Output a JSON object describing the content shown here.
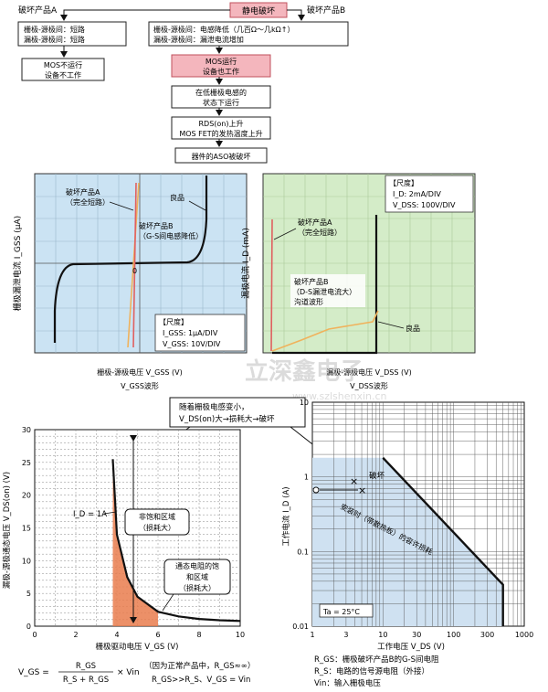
{
  "flow": {
    "top": "静电破坏",
    "productA_title": "破坏产品A",
    "productB_title": "破坏产品B",
    "a_box_lines": [
      "栅极-源极间：短路",
      "漏极-源极间：短路"
    ],
    "a_result_lines": [
      "MOS不运行",
      "设备不工作"
    ],
    "b_box_lines": [
      "栅极-源极间：电感降低（几百Ω～几kΩ↑）",
      "漏极-源极间：漏泄电流增加"
    ],
    "b_step1_lines": [
      "MOS运行",
      "设备也工作"
    ],
    "b_step2_lines": [
      "在低栅极电感的",
      "状态下运行"
    ],
    "b_step3_lines": [
      "RDS(on)上升",
      "MOS FET的发热温度上升"
    ],
    "b_step4": "器件的ASO被破坏"
  },
  "panel1": {
    "ylabel": "栅极漏泄电流  I_GSS (μA)",
    "xlabel": "栅极-源极电压  V_GSS  (V)",
    "caption": "V_GSS波形",
    "label_a": [
      "破坏产品A",
      "（完全短路）"
    ],
    "label_b": [
      "破坏产品B",
      "（G-S间电感降低）"
    ],
    "label_good": "良品",
    "origin": "0",
    "scale_title": "【尺度】",
    "scale_lines": [
      "I_GSS:  1μA/DIV",
      "V_GSS:  10V/DIV"
    ]
  },
  "panel2": {
    "ylabel": "漏极电流  I_D (mA)",
    "xlabel": "漏极-源极电压  V_DSS  (V)",
    "caption": "V_DSS波形",
    "scale_title": "【尺度】",
    "scale_lines": [
      "I_D:  2mA/DIV",
      "V_DSS:  100V/DIV"
    ],
    "label_a": [
      "破坏产品A",
      "（完全短路）"
    ],
    "label_b": [
      "破坏产品B",
      "（D-S漏泄电流大）",
      "沟道波形"
    ],
    "label_good": "良品"
  },
  "watermark": {
    "text": "立深鑫电子",
    "url": "www.szlshenxin.cn"
  },
  "callout": [
    "随着栅极电感变小，",
    "V_DS(on)大→损耗大→破坏"
  ],
  "panel3": {
    "ylabel": "漏极-源极通态电压  V_DS(on)  (V)",
    "xlabel": "栅极驱动电压  V_GS  (V)",
    "id_label": "I_D = 1A",
    "region1": [
      "非饱和区域",
      "（损耗大）"
    ],
    "region2": [
      "通态电阻的饱",
      "和区域",
      "（损耗大）"
    ]
  },
  "panel4": {
    "ylabel": "工作电流  I_D  (A)",
    "xlabel": "工作电压  V_DS  (V)",
    "break_label": "破坏",
    "aso_label": "安装时（带散热板）的容许损耗",
    "ta_label": "Ta = 25°C"
  },
  "formula": {
    "lhs": "V_GS =",
    "num": "R_GS",
    "den": "R_S + R_GS",
    "tail": "× Vin",
    "note1": "（因为正常产品中，R_GS≈∞）",
    "note2": "R_GS>>R_S、V_GS = Vin"
  },
  "legend": [
    "R_GS：栅极破坏产品B的G-S间电阻",
    "R_S：电路的信号源电阻（外接）",
    "Vin：输入栅极电压"
  ],
  "chart_data": [
    {
      "type": "line",
      "x": [
        0,
        1,
        2,
        3,
        4,
        5,
        6,
        7,
        8,
        9,
        10
      ],
      "y_ticks": [
        0,
        5,
        10,
        15,
        20,
        25,
        30
      ],
      "xlabel": "栅极驱动电压  V_GS  (V)",
      "ylabel": "漏极-源极通态电压  V_DS(on)  (V)",
      "xlim": [
        0,
        10
      ],
      "ylim": [
        0,
        30
      ],
      "series": [
        {
          "name": "I_D = 1A",
          "x": [
            3.8,
            4,
            4.5,
            5,
            6,
            7,
            8,
            9,
            10
          ],
          "y": [
            25.5,
            14,
            7.5,
            4.5,
            2.2,
            1.5,
            1.1,
            0.9,
            0.8
          ]
        }
      ]
    },
    {
      "type": "line",
      "x_ticks": [
        1,
        3,
        10,
        30,
        100,
        300,
        1000
      ],
      "y_ticks": [
        0.01,
        0.1,
        1,
        10
      ],
      "xlabel": "工作电压  V_DS  (V)",
      "ylabel": "工作电流  I_D  (A)",
      "xlim": [
        1,
        1000
      ],
      "ylim": [
        0.01,
        10
      ],
      "scale": "log-log",
      "series": [
        {
          "name": "安装时（带散热板）的容许损耗",
          "x": [
            10,
            500,
            500
          ],
          "y": [
            1.8,
            0.036,
            0.01
          ]
        }
      ]
    }
  ]
}
